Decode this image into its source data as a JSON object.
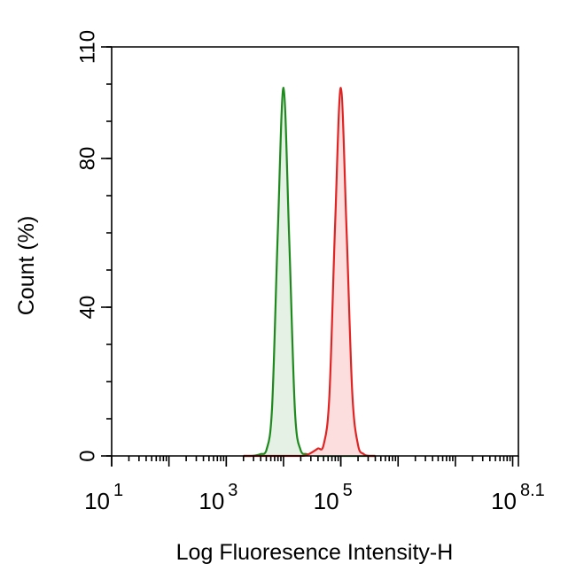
{
  "chart_data": {
    "type": "histogram-overlay",
    "xlabel": "Log Fluoresence Intensity-H",
    "ylabel": "Count  (%)",
    "xscale": "log",
    "xlim": [
      10,
      125892541.2
    ],
    "xticks": [
      {
        "value": 10,
        "label": "10",
        "exponent": "1"
      },
      {
        "value": 1000,
        "label": "10",
        "exponent": "3"
      },
      {
        "value": 100000,
        "label": "10",
        "exponent": "5"
      },
      {
        "value": 125892541.2,
        "label": "10",
        "exponent": "8.1"
      }
    ],
    "ylim": [
      0,
      110
    ],
    "yticks": [
      0,
      40,
      80,
      110
    ],
    "x": [
      1995,
      2512,
      3162,
      3981,
      5012,
      6310,
      7943,
      10000,
      12589,
      15849,
      19953,
      25119,
      31623,
      39811,
      50119,
      63096,
      79433,
      100000,
      125893,
      158489,
      199526,
      251189,
      316228,
      398107
    ],
    "series": [
      {
        "color": "#1e8a1e",
        "fill": "#e4f1e4",
        "values": [
          0,
          0,
          0.1,
          0.5,
          1.5,
          13,
          60,
          99,
          58,
          12,
          1.5,
          0.5,
          0.2,
          0,
          0,
          0,
          0,
          0,
          0,
          0,
          0,
          0,
          0,
          0
        ]
      },
      {
        "color": "#e02424",
        "fill": "#fcdede",
        "values": [
          0,
          0,
          0,
          0,
          0,
          0,
          0,
          0,
          0,
          0,
          0,
          0.2,
          1,
          2,
          3,
          16,
          62,
          99,
          61,
          17,
          3,
          0.5,
          0,
          0
        ]
      }
    ]
  }
}
